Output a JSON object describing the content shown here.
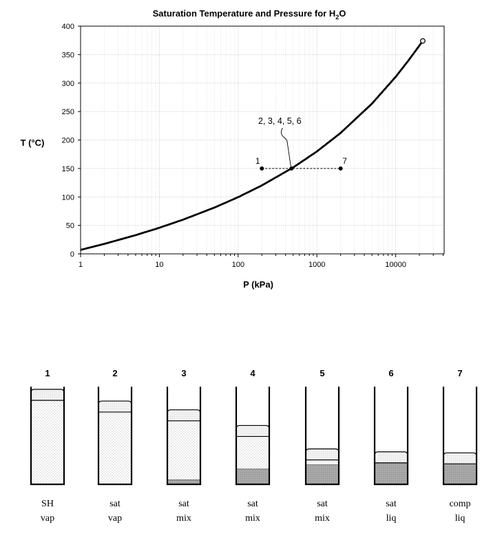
{
  "chart_data": {
    "type": "line",
    "title": "Saturation Temperature and Pressure for H",
    "title_sub": "2",
    "title_end": "O",
    "xlabel": "P (kPa)",
    "ylabel": "T (°C)",
    "x_scale": "log",
    "xlim": [
      1,
      30000
    ],
    "ylim": [
      0,
      400
    ],
    "x_ticks": [
      1,
      10,
      100,
      1000,
      10000
    ],
    "x_tick_labels": [
      "1",
      "10",
      "100",
      "1000",
      "10000"
    ],
    "y_ticks": [
      0,
      50,
      100,
      150,
      200,
      250,
      300,
      350,
      400
    ],
    "y_tick_labels": [
      "0",
      "50",
      "100",
      "150",
      "200",
      "250",
      "300",
      "350",
      "400"
    ],
    "grid": true,
    "series": [
      {
        "type": "line",
        "color": "#000000",
        "points": [
          [
            1,
            7.0
          ],
          [
            2,
            17.5
          ],
          [
            5,
            32.9
          ],
          [
            10,
            45.8
          ],
          [
            20,
            60.1
          ],
          [
            50,
            81.3
          ],
          [
            100,
            99.6
          ],
          [
            200,
            120.2
          ],
          [
            500,
            151.8
          ],
          [
            1000,
            179.9
          ],
          [
            2000,
            212.4
          ],
          [
            5000,
            263.9
          ],
          [
            10000,
            311.0
          ],
          [
            15000,
            342.2
          ],
          [
            22064,
            374.0
          ]
        ]
      }
    ],
    "critical_point": {
      "x": 22064,
      "y": 374
    },
    "state_points": [
      {
        "label": "1",
        "x": 200,
        "y": 150
      },
      {
        "label": "",
        "x": 476,
        "y": 150
      },
      {
        "label": "7",
        "x": 2000,
        "y": 150
      }
    ],
    "group_annotation": "2, 3, 4, 5, 6"
  },
  "cylinders": [
    {
      "number": "1",
      "line1": "SH",
      "line2": "vap",
      "vapor": 1.0,
      "liquid": 0.0,
      "piston_height_frac": 0.86
    },
    {
      "number": "2",
      "line1": "sat",
      "line2": "vap",
      "vapor": 1.0,
      "liquid": 0.0,
      "piston_height_frac": 0.74
    },
    {
      "number": "3",
      "line1": "sat",
      "line2": "mix",
      "vapor": 0.93,
      "liquid": 0.07,
      "piston_height_frac": 0.65
    },
    {
      "number": "4",
      "line1": "sat",
      "line2": "mix",
      "vapor": 0.68,
      "liquid": 0.32,
      "piston_height_frac": 0.49
    },
    {
      "number": "5",
      "line1": "sat",
      "line2": "mix",
      "vapor": 0.2,
      "liquid": 0.8,
      "piston_height_frac": 0.25
    },
    {
      "number": "6",
      "line1": "sat",
      "line2": "liq",
      "vapor": 0.0,
      "liquid": 1.0,
      "piston_height_frac": 0.22
    },
    {
      "number": "7",
      "line1": "comp",
      "line2": "liq",
      "vapor": 0.0,
      "liquid": 1.0,
      "piston_height_frac": 0.21
    }
  ]
}
